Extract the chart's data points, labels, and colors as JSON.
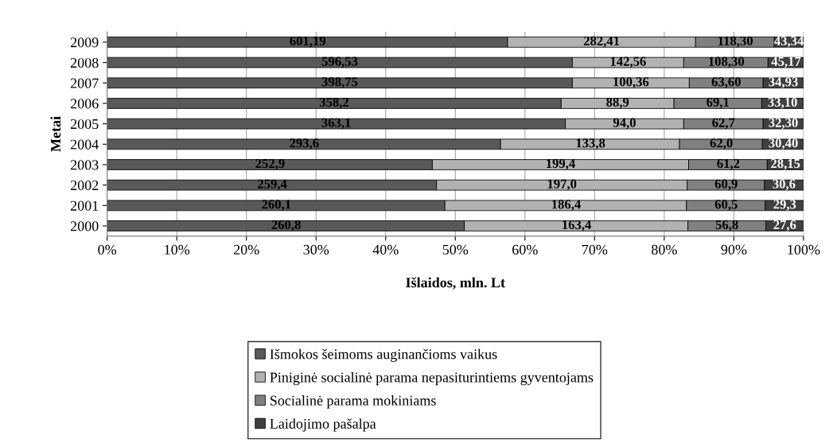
{
  "chart_data": {
    "type": "bar",
    "orientation": "horizontal",
    "stacked": true,
    "xlabel": "Išlaidos, mln. Lt",
    "ylabel": "Metai",
    "categories": [
      "2009",
      "2008",
      "2007",
      "2006",
      "2005",
      "2004",
      "2003",
      "2002",
      "2001",
      "2000"
    ],
    "xlim": [
      0,
      100
    ],
    "xticks": [
      {
        "value": 0,
        "label": "0%"
      },
      {
        "value": 10,
        "label": "10%"
      },
      {
        "value": 20,
        "label": "20%"
      },
      {
        "value": 30,
        "label": "30%"
      },
      {
        "value": 40,
        "label": "40%"
      },
      {
        "value": 50,
        "label": "50%"
      },
      {
        "value": 60,
        "label": "60%"
      },
      {
        "value": 70,
        "label": "70%"
      },
      {
        "value": 80,
        "label": "80%"
      },
      {
        "value": 90,
        "label": "90%"
      },
      {
        "value": 100,
        "label": "100%"
      }
    ],
    "grid": "x",
    "legend": "bottom",
    "series": [
      {
        "name": "Išmokos šeimoms auginančioms vaikus",
        "color": "#595959",
        "values": [
          57.5,
          66.8,
          66.8,
          65.2,
          65.8,
          56.5,
          46.7,
          47.3,
          48.5,
          51.3
        ]
      },
      {
        "name": "Piniginė socialinė parama nepasiturintiems gyventojams",
        "color": "#b2b2b2",
        "values": [
          27.0,
          16.0,
          16.8,
          16.2,
          17.0,
          25.7,
          36.8,
          36.0,
          34.7,
          32.1
        ]
      },
      {
        "name": "Socialinė parama mokiniams",
        "color": "#808080",
        "values": [
          11.3,
          12.1,
          10.6,
          12.6,
          11.4,
          11.9,
          11.3,
          11.1,
          11.3,
          11.2
        ]
      },
      {
        "name": "Laidojimo pašalpa",
        "color": "#404040",
        "values": [
          4.2,
          5.1,
          5.8,
          6.0,
          5.8,
          5.9,
          5.2,
          5.6,
          5.5,
          5.4
        ]
      }
    ],
    "annotations": [
      {
        "text": "601,19",
        "x": 28.8,
        "y": "2009"
      },
      {
        "text": "282,41",
        "x": 71.0,
        "y": "2009"
      },
      {
        "text": "118,30",
        "x": 90.2,
        "y": "2009"
      },
      {
        "text": "43,34",
        "x": 97.9,
        "y": "2009"
      },
      {
        "text": "596,53",
        "x": 33.4,
        "y": "2008"
      },
      {
        "text": "142,56",
        "x": 74.8,
        "y": "2008"
      },
      {
        "text": "108,30",
        "x": 88.9,
        "y": "2008"
      },
      {
        "text": "45,17",
        "x": 97.5,
        "y": "2008"
      },
      {
        "text": "398,75",
        "x": 33.4,
        "y": "2007"
      },
      {
        "text": "100,36",
        "x": 75.2,
        "y": "2007"
      },
      {
        "text": "63,60",
        "x": 88.9,
        "y": "2007"
      },
      {
        "text": "34,93",
        "x": 97.1,
        "y": "2007"
      },
      {
        "text": "358,2",
        "x": 32.6,
        "y": "2006"
      },
      {
        "text": "88,9",
        "x": 73.3,
        "y": "2006"
      },
      {
        "text": "69,1",
        "x": 87.7,
        "y": "2006"
      },
      {
        "text": "33,10",
        "x": 97.0,
        "y": "2006"
      },
      {
        "text": "363,1",
        "x": 32.9,
        "y": "2005"
      },
      {
        "text": "94,0",
        "x": 74.3,
        "y": "2005"
      },
      {
        "text": "62,7",
        "x": 88.5,
        "y": "2005"
      },
      {
        "text": "32,30",
        "x": 97.1,
        "y": "2005"
      },
      {
        "text": "293,6",
        "x": 28.3,
        "y": "2004"
      },
      {
        "text": "133,8",
        "x": 69.4,
        "y": "2004"
      },
      {
        "text": "62,0",
        "x": 88.2,
        "y": "2004"
      },
      {
        "text": "30,40",
        "x": 97.1,
        "y": "2004"
      },
      {
        "text": "252,9",
        "x": 23.4,
        "y": "2003"
      },
      {
        "text": "199,4",
        "x": 65.1,
        "y": "2003"
      },
      {
        "text": "61,2",
        "x": 89.2,
        "y": "2003"
      },
      {
        "text": "28,15",
        "x": 97.4,
        "y": "2003"
      },
      {
        "text": "259,4",
        "x": 23.7,
        "y": "2002"
      },
      {
        "text": "197,0",
        "x": 65.3,
        "y": "2002"
      },
      {
        "text": "60,9",
        "x": 88.9,
        "y": "2002"
      },
      {
        "text": "30,6",
        "x": 97.2,
        "y": "2002"
      },
      {
        "text": "260,1",
        "x": 24.3,
        "y": "2001"
      },
      {
        "text": "186,4",
        "x": 65.9,
        "y": "2001"
      },
      {
        "text": "60,5",
        "x": 88.9,
        "y": "2001"
      },
      {
        "text": "29,3",
        "x": 97.3,
        "y": "2001"
      },
      {
        "text": "260,8",
        "x": 25.7,
        "y": "2000"
      },
      {
        "text": "163,4",
        "x": 67.4,
        "y": "2000"
      },
      {
        "text": "56,8",
        "x": 89.0,
        "y": "2000"
      },
      {
        "text": "27,6",
        "x": 97.3,
        "y": "2000"
      }
    ]
  }
}
